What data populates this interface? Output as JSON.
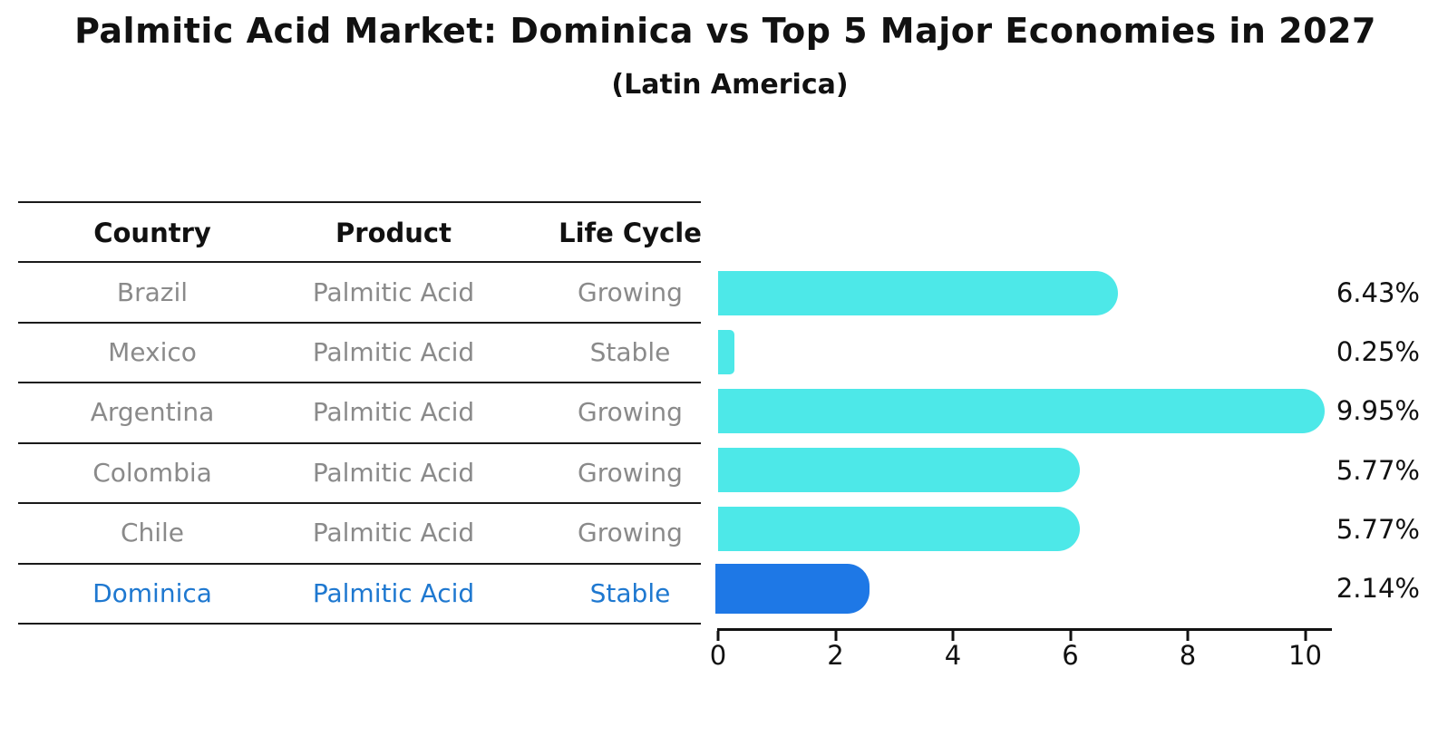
{
  "page": {
    "title": "Palmitic Acid Market: Dominica vs Top 5 Major Economies in 2027",
    "subtitle": "(Latin America)"
  },
  "table": {
    "headers": [
      "Country",
      "Product",
      "Life Cycle"
    ],
    "rows": [
      {
        "country": "Brazil",
        "product": "Palmitic Acid",
        "life_cycle": "Growing",
        "highlighted": false
      },
      {
        "country": "Mexico",
        "product": "Palmitic Acid",
        "life_cycle": "Stable",
        "highlighted": false
      },
      {
        "country": "Argentina",
        "product": "Palmitic Acid",
        "life_cycle": "Growing",
        "highlighted": false
      },
      {
        "country": "Colombia",
        "product": "Palmitic Acid",
        "life_cycle": "Growing",
        "highlighted": false
      },
      {
        "country": "Chile",
        "product": "Palmitic Acid",
        "life_cycle": "Growing",
        "highlighted": false
      },
      {
        "country": "Dominica",
        "product": "Palmitic Acid",
        "life_cycle": "Stable",
        "highlighted": true
      }
    ]
  },
  "chart_data": {
    "type": "bar",
    "orientation": "horizontal",
    "title": "Palmitic Acid Market: Dominica vs Top 5 Major Economies in 2027",
    "subtitle": "(Latin America)",
    "categories": [
      "Brazil",
      "Mexico",
      "Argentina",
      "Colombia",
      "Chile",
      "Dominica"
    ],
    "values": [
      6.43,
      0.25,
      9.95,
      5.77,
      5.77,
      2.14
    ],
    "value_labels": [
      "6.43%",
      "0.25%",
      "9.95%",
      "5.77%",
      "5.77%",
      "2.14%"
    ],
    "x_ticks": [
      0,
      2,
      4,
      6,
      8,
      10
    ],
    "x_tick_labels": [
      "0",
      "2",
      "4",
      "6",
      "8",
      "10"
    ],
    "xlim": [
      0,
      10.45
    ],
    "grid": false,
    "legend": false,
    "bar_color": "#4DE8E8",
    "highlight_color": "#1E78E6",
    "highlight_index": 5,
    "highlight_text_color": "#1e78d0",
    "text_color": "#8a8a8a"
  }
}
